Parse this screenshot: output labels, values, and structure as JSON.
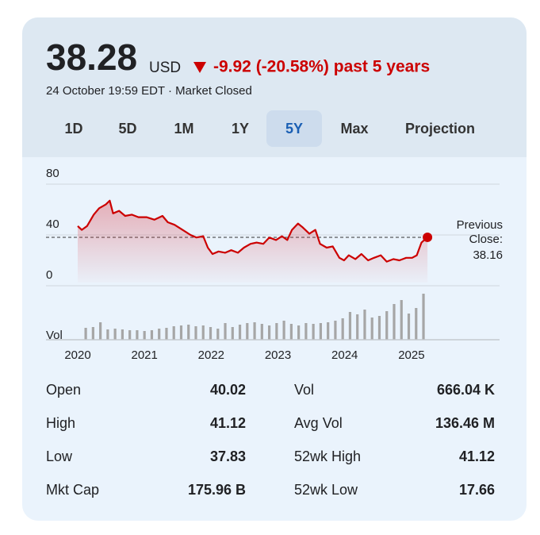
{
  "header": {
    "price": "38.28",
    "currency": "USD",
    "change": "-9.92 (-20.58%) past 5 years",
    "timestamp": "24 October 19:59 EDT · Market Closed"
  },
  "tabs": {
    "items": [
      "1D",
      "5D",
      "1M",
      "1Y",
      "5Y",
      "Max",
      "Projection"
    ],
    "selected": "5Y"
  },
  "chart_data": {
    "type": "line",
    "color": "#cc0000",
    "x": [
      2020.0,
      2020.06,
      2020.14,
      2020.24,
      2020.32,
      2020.42,
      2020.48,
      2020.53,
      2020.62,
      2020.71,
      2020.81,
      2020.91,
      2021.03,
      2021.15,
      2021.27,
      2021.35,
      2021.45,
      2021.57,
      2021.69,
      2021.78,
      2021.88,
      2021.95,
      2022.02,
      2022.11,
      2022.21,
      2022.3,
      2022.4,
      2022.49,
      2022.59,
      2022.68,
      2022.78,
      2022.87,
      2022.97,
      2023.06,
      2023.14,
      2023.21,
      2023.3,
      2023.37,
      2023.47,
      2023.56,
      2023.63,
      2023.73,
      2023.82,
      2023.92,
      2023.99,
      2024.06,
      2024.16,
      2024.25,
      2024.35,
      2024.44,
      2024.54,
      2024.63,
      2024.73,
      2024.82,
      2024.92,
      2025.01,
      2025.08,
      2025.15,
      2025.24
    ],
    "values": [
      47,
      44,
      47,
      56,
      61,
      64,
      67,
      57,
      59,
      55,
      56,
      54,
      54,
      52,
      55,
      50,
      48,
      44,
      40,
      38,
      39,
      30,
      25,
      27,
      26,
      28,
      26,
      30,
      33,
      34,
      33,
      38,
      36,
      39,
      36,
      44,
      49,
      46,
      41,
      44,
      33,
      30,
      31,
      22,
      20,
      24,
      21,
      25,
      20,
      22,
      24,
      19,
      21,
      20,
      22,
      22,
      24,
      34,
      38.16
    ],
    "xlim": [
      2020,
      2026.32
    ],
    "xticks": [
      2020,
      2021,
      2022,
      2023,
      2024,
      2025
    ],
    "ylim": [
      0,
      80
    ],
    "yticks": [
      0,
      40,
      80
    ],
    "grid": true,
    "reference": {
      "label_lines": [
        "Previous",
        "Close:"
      ],
      "value": 38.16
    },
    "volume": {
      "label": "Vol",
      "color": "#a6a6a6",
      "axis": "y2",
      "x": [
        2020.12,
        2020.23,
        2020.34,
        2020.45,
        2020.56,
        2020.67,
        2020.78,
        2020.89,
        2021.0,
        2021.11,
        2021.22,
        2021.33,
        2021.44,
        2021.55,
        2021.66,
        2021.77,
        2021.88,
        2021.99,
        2022.1,
        2022.21,
        2022.32,
        2022.43,
        2022.54,
        2022.65,
        2022.76,
        2022.87,
        2022.98,
        2023.09,
        2023.2,
        2023.31,
        2023.42,
        2023.53,
        2023.64,
        2023.75,
        2023.86,
        2023.97,
        2024.08,
        2024.19,
        2024.3,
        2024.41,
        2024.52,
        2024.63,
        2024.74,
        2024.85,
        2024.96,
        2025.07,
        2025.18
      ],
      "values": [
        15,
        16,
        22,
        13,
        14,
        13,
        12,
        12,
        11,
        12,
        14,
        15,
        17,
        18,
        19,
        17,
        18,
        16,
        14,
        21,
        16,
        19,
        21,
        22,
        20,
        18,
        21,
        24,
        20,
        18,
        21,
        20,
        21,
        22,
        24,
        27,
        35,
        32,
        38,
        28,
        30,
        36,
        45,
        50,
        33,
        40,
        58
      ]
    },
    "y2lim": [
      0,
      60
    ]
  },
  "stats": {
    "rows": [
      [
        "Open",
        "40.02",
        "Vol",
        "666.04 K"
      ],
      [
        "High",
        "41.12",
        "Avg Vol",
        "136.46 M"
      ],
      [
        "Low",
        "37.83",
        "52wk High",
        "41.12"
      ],
      [
        "Mkt Cap",
        "175.96 B",
        "52wk Low",
        "17.66"
      ]
    ]
  }
}
